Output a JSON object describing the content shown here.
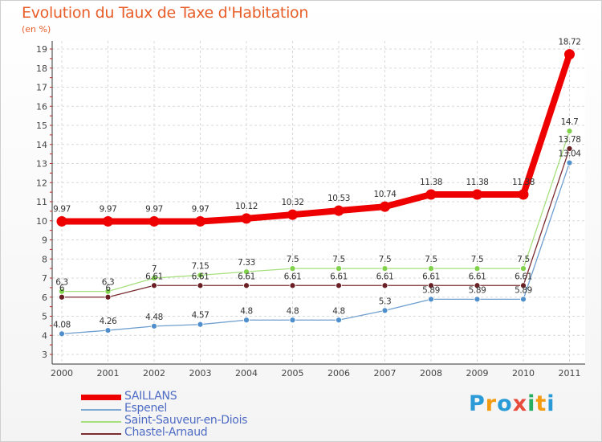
{
  "header": {
    "title": "Evolution du Taux de Taxe d'Habitation",
    "unit": "(en %)"
  },
  "logo": {
    "letters": [
      "P",
      "r",
      "o",
      "x",
      "i",
      "t",
      "i"
    ],
    "colors": [
      "#2a9bd6",
      "#f39c12",
      "#2a9bd6",
      "#e74c3c",
      "#27ae60",
      "#f39c12",
      "#2a9bd6"
    ]
  },
  "chart_data": {
    "type": "line",
    "title": "Evolution du Taux de Taxe d'Habitation",
    "ylabel": "(en %)",
    "xlabel": "",
    "ylim": [
      3,
      19
    ],
    "yticks": [
      3,
      4,
      5,
      6,
      7,
      8,
      9,
      10,
      11,
      12,
      13,
      14,
      15,
      16,
      17,
      18,
      19
    ],
    "categories": [
      "2000",
      "2001",
      "2002",
      "2003",
      "2004",
      "2005",
      "2006",
      "2007",
      "2008",
      "2009",
      "2010",
      "2011"
    ],
    "series": [
      {
        "name": "SAILLANS",
        "color": "#ee0000",
        "labels": [
          "9.97",
          "9.97",
          "9.97",
          "9.97",
          "10.12",
          "10.32",
          "10.53",
          "10.74",
          "11.38",
          "11.38",
          "11.38",
          "18.72"
        ],
        "values": [
          9.97,
          9.97,
          9.97,
          9.97,
          10.12,
          10.32,
          10.53,
          10.74,
          11.38,
          11.38,
          11.38,
          18.72
        ]
      },
      {
        "name": "Espenel",
        "color": "#7fa9d3",
        "labels": [
          "4.08",
          "4.26",
          "4.48",
          "4.57",
          "4.8",
          "4.8",
          "4.8",
          "5.3",
          "5.89",
          "5.89",
          "5.89",
          "13.04"
        ],
        "values": [
          4.08,
          4.26,
          4.48,
          4.57,
          4.8,
          4.8,
          4.8,
          5.3,
          5.89,
          5.89,
          5.89,
          13.04
        ]
      },
      {
        "name": "Saint-Sauveur-en-Diois",
        "color": "#a6e07e",
        "labels": [
          "6.3",
          "6.3",
          "7",
          "7.15",
          "7.33",
          "7.5",
          "7.5",
          "7.5",
          "7.5",
          "7.5",
          "7.5",
          "14.7"
        ],
        "values": [
          6.3,
          6.3,
          7,
          7.15,
          7.33,
          7.5,
          7.5,
          7.5,
          7.5,
          7.5,
          7.5,
          14.7
        ]
      },
      {
        "name": "Chastel-Arnaud",
        "color": "#7a2c30",
        "labels": [
          "6",
          "6",
          "6.61",
          "6.61",
          "6.61",
          "6.61",
          "6.61",
          "6.61",
          "6.61",
          "6.61",
          "6.61",
          "13.78"
        ],
        "values": [
          6,
          6,
          6.61,
          6.61,
          6.61,
          6.61,
          6.61,
          6.61,
          6.61,
          6.61,
          6.61,
          13.78
        ]
      }
    ],
    "legend": "bottom-left"
  }
}
